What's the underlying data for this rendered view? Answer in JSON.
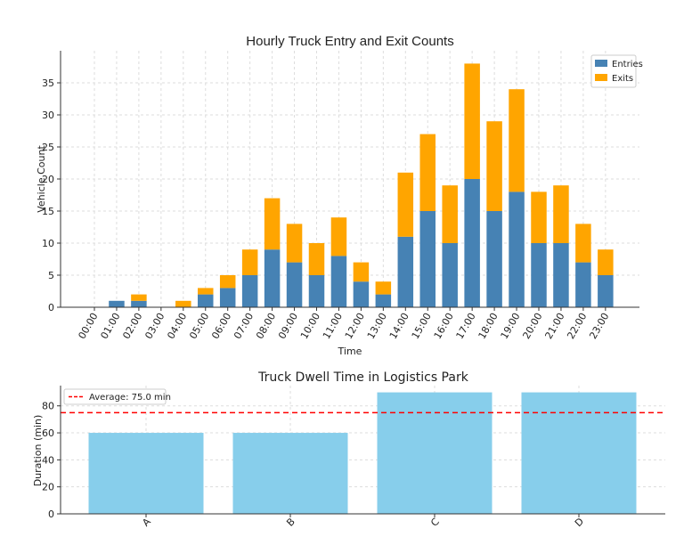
{
  "chart_data": [
    {
      "type": "bar",
      "stacked": true,
      "title": "Hourly Truck Entry and Exit Counts",
      "xlabel": "Time",
      "ylabel": "Vehicle Count",
      "categories": [
        "00:00",
        "01:00",
        "02:00",
        "03:00",
        "04:00",
        "05:00",
        "06:00",
        "07:00",
        "08:00",
        "09:00",
        "10:00",
        "11:00",
        "12:00",
        "13:00",
        "14:00",
        "15:00",
        "16:00",
        "17:00",
        "18:00",
        "19:00",
        "20:00",
        "21:00",
        "22:00",
        "23:00"
      ],
      "series": [
        {
          "name": "Entries",
          "color": "#4682b4",
          "values": [
            0,
            1,
            1,
            0,
            0,
            2,
            3,
            5,
            9,
            7,
            5,
            8,
            4,
            2,
            11,
            15,
            10,
            20,
            15,
            18,
            10,
            10,
            7,
            5
          ]
        },
        {
          "name": "Exits",
          "color": "#ffa500",
          "values": [
            0,
            0,
            1,
            0,
            1,
            1,
            2,
            4,
            8,
            6,
            5,
            6,
            3,
            2,
            10,
            12,
            9,
            18,
            14,
            16,
            8,
            9,
            6,
            4
          ]
        }
      ],
      "ylim": [
        0,
        40
      ],
      "yticks": [
        0,
        5,
        10,
        15,
        20,
        25,
        30,
        35
      ],
      "grid": true,
      "legend": "top-right"
    },
    {
      "type": "bar",
      "title": "Truck Dwell Time in Logistics Park",
      "xlabel": "",
      "ylabel": "Duration (min)",
      "categories": [
        "A",
        "B",
        "C",
        "D"
      ],
      "values": [
        60,
        60,
        90,
        90
      ],
      "color": "#87ceeb",
      "reference_line": {
        "label": "Average: 75.0 min",
        "value": 75.0,
        "color": "#ff0000"
      },
      "ylim": [
        0,
        95
      ],
      "yticks": [
        0,
        20,
        40,
        60,
        80
      ],
      "grid": true,
      "legend": "top-left"
    }
  ]
}
